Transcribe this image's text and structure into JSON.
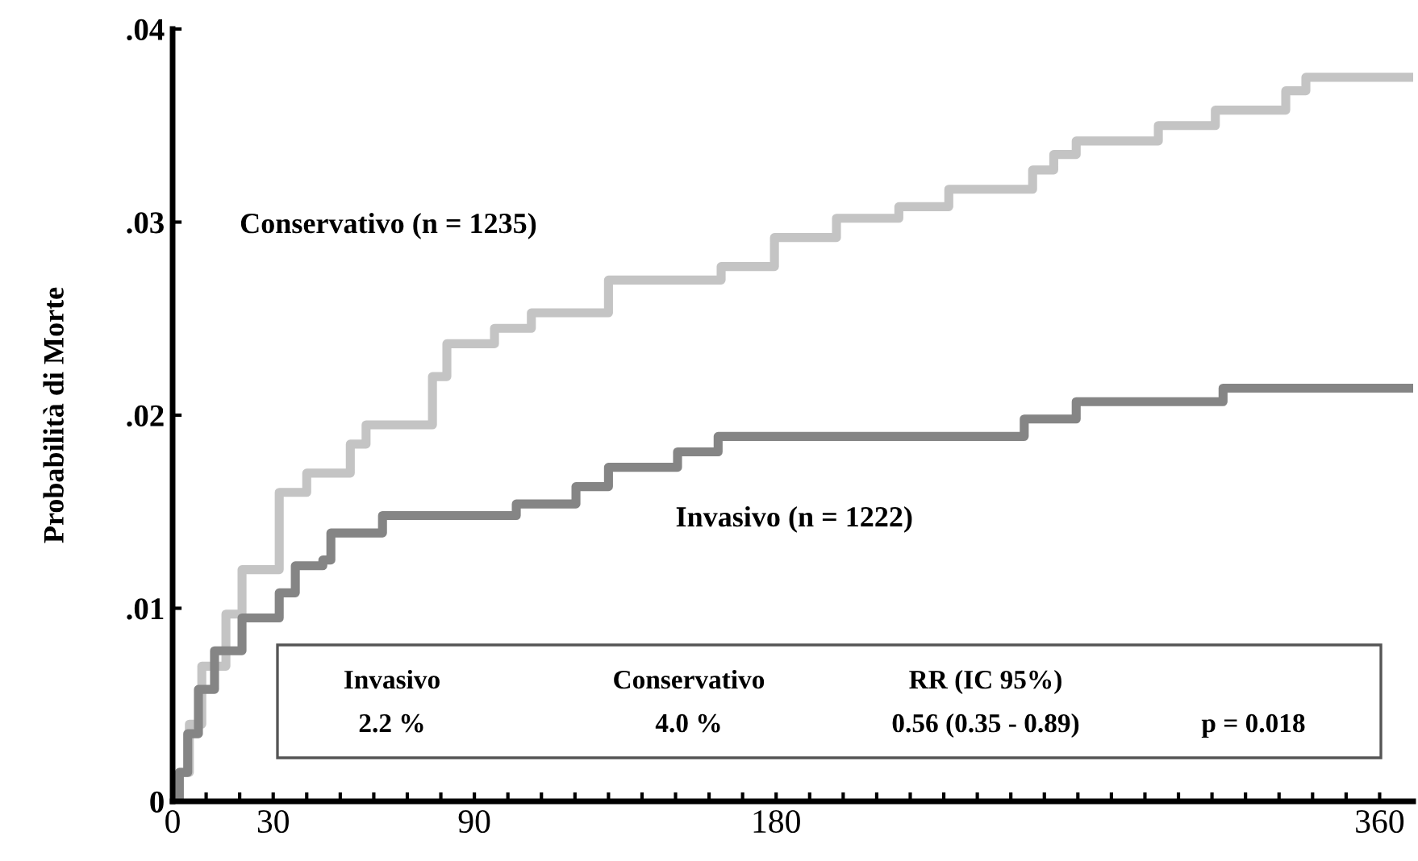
{
  "chart_data": {
    "type": "step",
    "ylabel": "Probabilità di Morte",
    "series": [
      {
        "name": "Conservativo (n = 1235)",
        "color": "#c4c4c4",
        "x": [
          0,
          2,
          5,
          8.7,
          15.9,
          20.7,
          31.8,
          40,
          53,
          57.7,
          73.6,
          77.5,
          81.8,
          96,
          107,
          130,
          163.6,
          179.5,
          198,
          216.6,
          231.5,
          256.5,
          262.8,
          269.5,
          294,
          311,
          332,
          338,
          370
        ],
        "values": [
          0,
          0.0015,
          0.004,
          0.007,
          0.0097,
          0.012,
          0.016,
          0.017,
          0.0185,
          0.0195,
          0.0195,
          0.022,
          0.0237,
          0.0245,
          0.0253,
          0.027,
          0.0277,
          0.0292,
          0.0302,
          0.0308,
          0.0317,
          0.0327,
          0.0335,
          0.0342,
          0.035,
          0.0358,
          0.0368,
          0.0375,
          0.0375
        ]
      },
      {
        "name": "Invasivo (n = 1222)",
        "color": "#858585",
        "x": [
          0,
          2,
          4.5,
          7.7,
          12.5,
          20.7,
          31.8,
          36.6,
          44.8,
          47.2,
          62.6,
          102.5,
          120.3,
          130,
          150.6,
          162.7,
          254,
          269.5,
          313.3,
          370
        ],
        "values": [
          0,
          0.0015,
          0.0035,
          0.0058,
          0.0078,
          0.0095,
          0.0108,
          0.0122,
          0.0125,
          0.0139,
          0.0148,
          0.0154,
          0.0163,
          0.0173,
          0.0181,
          0.0189,
          0.0198,
          0.0207,
          0.0214,
          0.0214
        ]
      }
    ],
    "xlim": [
      0,
      370
    ],
    "xticks": [
      0,
      {
        "value": 10,
        "label": null
      },
      {
        "value": 20,
        "label": null
      },
      30,
      {
        "value": 40,
        "label": null
      },
      {
        "value": 50,
        "label": null
      },
      {
        "value": 60,
        "label": null
      },
      {
        "value": 70,
        "label": null
      },
      {
        "value": 80,
        "label": null
      },
      90,
      {
        "value": 100,
        "label": null
      },
      {
        "value": 110,
        "label": null
      },
      {
        "value": 120,
        "label": null
      },
      {
        "value": 130,
        "label": null
      },
      {
        "value": 140,
        "label": null
      },
      {
        "value": 150,
        "label": null
      },
      {
        "value": 160,
        "label": null
      },
      {
        "value": 170,
        "label": null
      },
      180,
      {
        "value": 190,
        "label": null
      },
      {
        "value": 200,
        "label": null
      },
      {
        "value": 210,
        "label": null
      },
      {
        "value": 220,
        "label": null
      },
      {
        "value": 230,
        "label": null
      },
      {
        "value": 240,
        "label": null
      },
      {
        "value": 250,
        "label": null
      },
      {
        "value": 260,
        "label": null
      },
      {
        "value": 270,
        "label": null
      },
      {
        "value": 280,
        "label": null
      },
      {
        "value": 290,
        "label": null
      },
      {
        "value": 300,
        "label": null
      },
      {
        "value": 310,
        "label": null
      },
      {
        "value": 320,
        "label": null
      },
      {
        "value": 330,
        "label": null
      },
      {
        "value": 340,
        "label": null
      },
      {
        "value": 350,
        "label": null
      },
      360
    ],
    "ylim": [
      0,
      0.04
    ],
    "yticks": [
      0,
      {
        "value": 0.01,
        "label": ".01"
      },
      {
        "value": 0.02,
        "label": ".02"
      },
      {
        "value": 0.03,
        "label": ".03"
      },
      {
        "value": 0.04,
        "label": ".04"
      }
    ],
    "annotations": [
      "Invasivo",
      "2.2 %",
      "Conservativo",
      "4.0 %",
      "RR (IC 95%)",
      "0.56 (0.35 - 0.89)",
      "p = 0.018"
    ],
    "grid": false,
    "legend": false,
    "marker": "none",
    "line_style": "solid"
  }
}
